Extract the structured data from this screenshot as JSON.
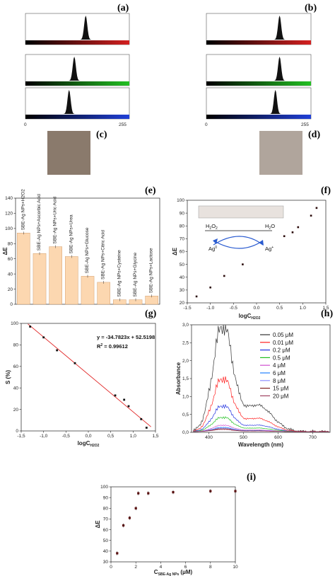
{
  "panels": {
    "a": "(a)",
    "b": "(b)",
    "c": "(c)",
    "d": "(d)",
    "e": "(e)",
    "f": "(f)",
    "g": "(g)",
    "h": "(h)",
    "i": "(i)"
  },
  "histograms": {
    "axis_min": "0",
    "axis_max": "255",
    "channels": [
      "#d42020",
      "#22c022",
      "#2040d8"
    ],
    "peak_a": [
      0.58,
      0.47,
      0.42
    ],
    "peak_b": [
      0.7,
      0.7,
      0.66
    ]
  },
  "swatches": {
    "c": "#8a7a6c",
    "d": "#b0a59c"
  },
  "chart_data": [
    {
      "id": "e",
      "type": "bar",
      "categories": [
        "SBE-Ag NPs+H2O2",
        "SBE-Ag NPs+Ascorbic Acid",
        "SBE-Ag NPs+Uric Acid",
        "SBE-Ag NPs+Urea",
        "SBE-Ag NPs+Glucose",
        "SBE-Ag NPs+Citric Acid",
        "SBE-Ag NPs+Cysteine",
        "SBE-Ag NPs+Glycine",
        "SBE-Ag NPs+Lactose"
      ],
      "values": [
        94,
        67,
        76,
        63,
        37,
        29,
        6,
        6,
        11
      ],
      "ylabel": "ΔE",
      "ylim": [
        0,
        140
      ],
      "yticks": [
        "0",
        "20",
        "40",
        "60",
        "80",
        "100",
        "120",
        "140"
      ]
    },
    {
      "id": "f",
      "type": "scatter",
      "x": [
        -1.3,
        -1.0,
        -0.7,
        -0.3,
        0.6,
        0.78,
        0.9,
        1.18,
        1.3
      ],
      "y": [
        25,
        32,
        41,
        50,
        72,
        75,
        79,
        88,
        94
      ],
      "xlabel": "logC",
      "xsub": "H2O2",
      "ylabel": "ΔE",
      "xlim": [
        -1.5,
        1.5
      ],
      "ylim": [
        20,
        100
      ],
      "xticks": [
        "-1.5",
        "-1.0",
        "-0.5",
        "0.0",
        "0.5",
        "1.0",
        "1.5"
      ],
      "yticks": [
        "20",
        "30",
        "40",
        "50",
        "60",
        "70",
        "80",
        "90",
        "100"
      ],
      "inset": {
        "left_top": "H",
        "left_sub": "2",
        "left_top2": "O",
        "left_sub2": "2",
        "right": "H",
        "right_sub": "2",
        "right_end": "O",
        "ag0": "Ag",
        "ag0_sup": "0",
        "agp": "Ag",
        "agp_sup": "+"
      }
    },
    {
      "id": "g",
      "type": "scatter",
      "x": [
        -1.3,
        -1.0,
        -0.7,
        -0.3,
        0.6,
        0.8,
        0.9,
        1.18,
        1.3
      ],
      "y": [
        97,
        87,
        75,
        63,
        33,
        29,
        23,
        11,
        3
      ],
      "fit": {
        "slope": -34.7823,
        "intercept": 52.5198
      },
      "equation": "y = -34.7823x + 52.5198",
      "r2": "R",
      "r2_sup": "2",
      "r2_val": " = 0.99612",
      "xlabel": "logC",
      "xsub": "H2O2",
      "ylabel": "S (%)",
      "xlim": [
        -1.5,
        1.5
      ],
      "ylim": [
        0,
        100
      ],
      "xticks": [
        "-1,5",
        "-1,0",
        "-0,5",
        "0,0",
        "0,5",
        "1,0",
        "1,5"
      ],
      "yticks": [
        "0",
        "20",
        "40",
        "60",
        "80",
        "100"
      ]
    },
    {
      "id": "h",
      "type": "line",
      "xlabel": "Wavelength (nm)",
      "ylabel": "Absorbance",
      "xlim": [
        350,
        750
      ],
      "ylim": [
        0,
        3.0
      ],
      "xticks": [
        "400",
        "500",
        "600",
        "700"
      ],
      "yticks": [
        "0,0",
        "0,5",
        "1,0",
        "1,5",
        "2,0",
        "2,5",
        "3,0"
      ],
      "series": [
        {
          "name": "0.05 μM",
          "color": "#333333",
          "peak": 2.95
        },
        {
          "name": "0.01 μM",
          "color": "#ff2020",
          "peak": 1.48
        },
        {
          "name": "0.2 μM",
          "color": "#2030e0",
          "peak": 0.72
        },
        {
          "name": "0.5 μM",
          "color": "#20c020",
          "peak": 0.4
        },
        {
          "name": "4 μM",
          "color": "#d050d0",
          "peak": 0.18
        },
        {
          "name": "6 μM",
          "color": "#2080ff",
          "peak": 0.12
        },
        {
          "name": "8 μM",
          "color": "#9090ff",
          "peak": 0.1
        },
        {
          "name": "15 μM",
          "color": "#802020",
          "peak": 0.08
        },
        {
          "name": "20 μM",
          "color": "#a04060",
          "peak": 0.06
        }
      ]
    },
    {
      "id": "i",
      "type": "scatter",
      "x": [
        0.5,
        1.0,
        1.5,
        2.0,
        2.2,
        3.0,
        5.0,
        8.0,
        10.0
      ],
      "y": [
        38,
        64,
        71,
        80,
        94,
        94,
        95,
        96,
        96
      ],
      "xlabel": "C",
      "xsub": "SBE-Ag NPs",
      "xunit": "(μM)",
      "ylabel": "ΔE",
      "xlim": [
        0,
        10
      ],
      "ylim": [
        30,
        100
      ],
      "xticks": [
        "0",
        "2",
        "4",
        "6",
        "8",
        "10"
      ],
      "yticks": [
        "30",
        "40",
        "50",
        "60",
        "70",
        "80",
        "90",
        "100"
      ]
    }
  ]
}
